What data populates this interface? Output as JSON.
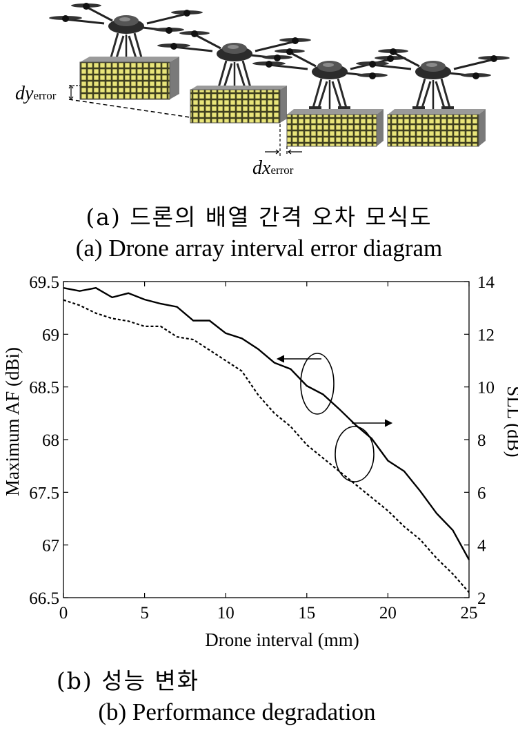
{
  "diagram": {
    "dy_label": "dy",
    "dy_sub": "error",
    "dx_label": "dx",
    "dx_sub": "error"
  },
  "captions": {
    "a_ko": "(a) 드론의 배열 간격 오차 모식도",
    "a_en": "(a) Drone array interval error diagram",
    "b_ko": "(b) 성능 변화",
    "b_en": "(b) Performance degradation"
  },
  "chart_data": {
    "type": "line",
    "title": "",
    "xlabel": "Drone interval (mm)",
    "ylabel": "Maximum AF (dBi)",
    "y2label": "SLL (dB)",
    "xlim": [
      0,
      25
    ],
    "ylim": [
      66.5,
      69.5
    ],
    "y2lim": [
      2,
      14
    ],
    "xticks": [
      "0",
      "5",
      "10",
      "15",
      "20",
      "25"
    ],
    "yticks": [
      "66.5",
      "67",
      "67.5",
      "68",
      "68.5",
      "69",
      "69.5"
    ],
    "y2ticks": [
      "2",
      "4",
      "6",
      "8",
      "10",
      "12",
      "14"
    ],
    "grid": false,
    "series": [
      {
        "axis": "left",
        "style": "solid",
        "x": [
          0,
          1,
          2,
          3,
          4,
          5,
          6,
          7,
          8,
          9,
          10,
          11,
          12,
          13,
          14,
          15,
          16,
          17,
          18,
          19,
          20,
          21,
          22,
          23,
          24,
          25
        ],
        "values": [
          69.44,
          69.41,
          69.44,
          69.35,
          69.39,
          69.33,
          69.29,
          69.26,
          69.13,
          69.13,
          69.01,
          68.96,
          68.86,
          68.73,
          68.67,
          68.51,
          68.43,
          68.29,
          68.14,
          68.01,
          67.8,
          67.7,
          67.51,
          67.3,
          67.14,
          66.86
        ]
      },
      {
        "axis": "right",
        "style": "dashed",
        "x": [
          0,
          1,
          2,
          3,
          4,
          5,
          6,
          7,
          8,
          9,
          10,
          11,
          12,
          13,
          14,
          15,
          16,
          17,
          18,
          19,
          20,
          21,
          22,
          23,
          24,
          25
        ],
        "values": [
          13.3,
          13.1,
          12.8,
          12.6,
          12.5,
          12.3,
          12.3,
          11.9,
          11.8,
          11.4,
          11.0,
          10.6,
          9.7,
          9.0,
          8.5,
          7.8,
          7.3,
          6.8,
          6.3,
          5.8,
          5.3,
          4.7,
          4.2,
          3.5,
          2.9,
          2.2
        ]
      }
    ]
  }
}
